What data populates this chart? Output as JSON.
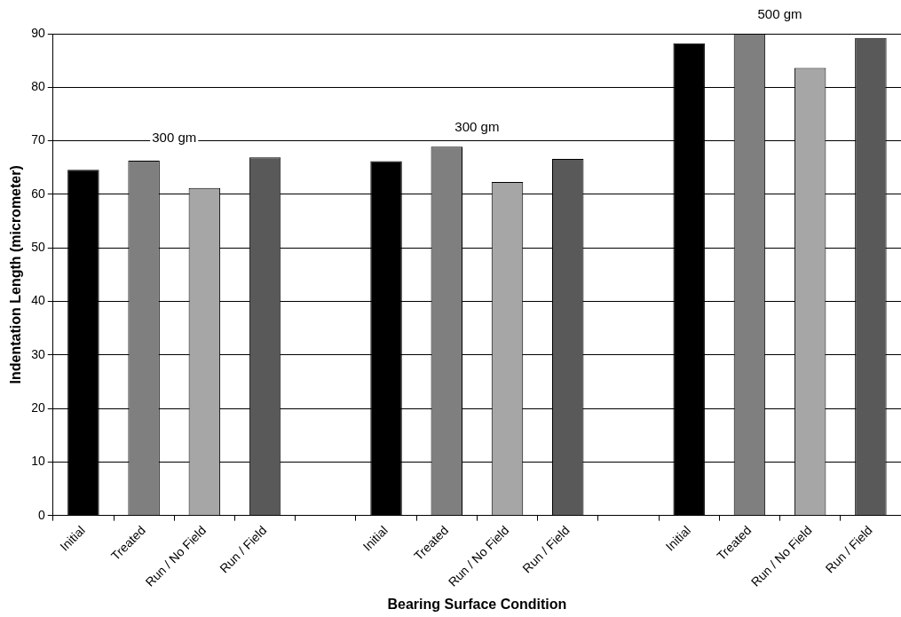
{
  "chart_data": {
    "type": "bar",
    "xlabel": "Bearing Surface Condition",
    "ylabel": "Indentation Length (micrometer)",
    "categories": [
      "Initial",
      "Treated",
      "Run / No Field",
      "Run / Field",
      null,
      "Initial",
      "Treated",
      "Run / No Field",
      "Run / Field",
      null,
      "Initial",
      "Treated",
      "Run / No Field",
      "Run / Field"
    ],
    "values": [
      64.6,
      66.3,
      61.2,
      66.9,
      null,
      66.2,
      68.9,
      62.3,
      66.6,
      null,
      88.2,
      90,
      83.6,
      89.2
    ],
    "colors": [
      "#000000",
      "#7f7f7f",
      "#a6a6a6",
      "#595959",
      null,
      "#000000",
      "#7f7f7f",
      "#a6a6a6",
      "#595959",
      null,
      "#000000",
      "#7f7f7f",
      "#a6a6a6",
      "#595959"
    ],
    "ylim": [
      0,
      90
    ],
    "yticks": [
      0,
      10,
      20,
      30,
      40,
      50,
      60,
      70,
      80,
      90
    ],
    "grid": "y",
    "legend": false,
    "annotations": [
      "300 gm",
      "300 gm",
      "500 gm"
    ]
  }
}
